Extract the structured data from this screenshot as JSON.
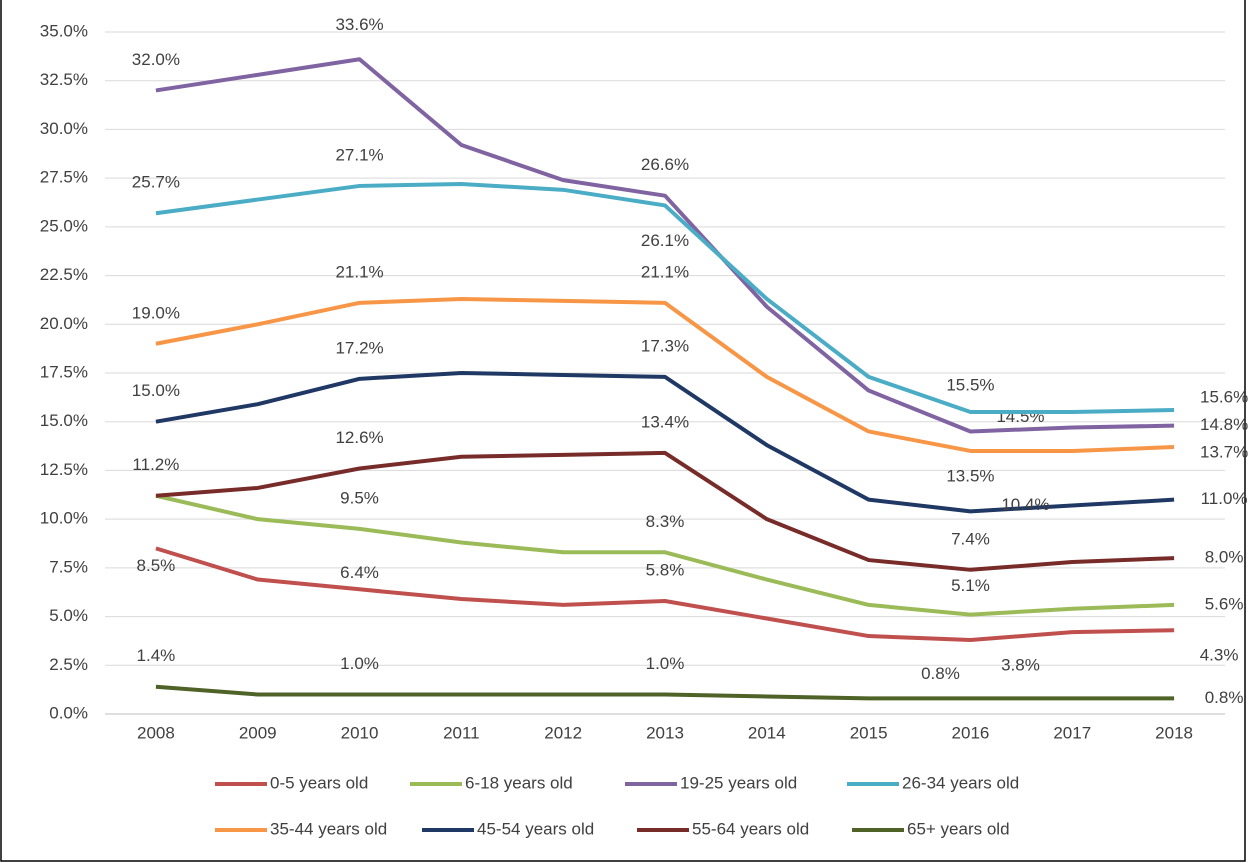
{
  "chart_data": {
    "type": "line",
    "categories": [
      "2008",
      "2009",
      "2010",
      "2011",
      "2012",
      "2013",
      "2014",
      "2015",
      "2016",
      "2017",
      "2018"
    ],
    "ylim": [
      0,
      35
    ],
    "yticks": [
      {
        "value": 0,
        "label": "0.0%"
      },
      {
        "value": 2.5,
        "label": "2.5%"
      },
      {
        "value": 5,
        "label": "5.0%"
      },
      {
        "value": 7.5,
        "label": "7.5%"
      },
      {
        "value": 10,
        "label": "10.0%"
      },
      {
        "value": 12.5,
        "label": "12.5%"
      },
      {
        "value": 15,
        "label": "15.0%"
      },
      {
        "value": 17.5,
        "label": "17.5%"
      },
      {
        "value": 20,
        "label": "20.0%"
      },
      {
        "value": 22.5,
        "label": "22.5%"
      },
      {
        "value": 25,
        "label": "25.0%"
      },
      {
        "value": 27.5,
        "label": "27.5%"
      },
      {
        "value": 30,
        "label": "30.0%"
      },
      {
        "value": 32.5,
        "label": "32.5%"
      },
      {
        "value": 35,
        "label": "35.0%"
      }
    ],
    "grid": true,
    "series": [
      {
        "name": "0-5 years old",
        "color": "#c0504d",
        "values": [
          8.5,
          6.9,
          6.4,
          5.9,
          5.6,
          5.8,
          4.9,
          4.0,
          3.8,
          4.2,
          4.3
        ],
        "value_labels": [
          "8.5%",
          null,
          "6.4%",
          null,
          null,
          "5.8%",
          null,
          null,
          "3.8%",
          null,
          "4.3%"
        ]
      },
      {
        "name": "6-18 years old",
        "color": "#9bbb59",
        "values": [
          11.2,
          10.0,
          9.5,
          8.8,
          8.3,
          8.3,
          6.9,
          5.6,
          5.1,
          5.4,
          5.6
        ],
        "value_labels": [
          null,
          null,
          "9.5%",
          null,
          null,
          "8.3%",
          null,
          null,
          "5.1%",
          null,
          "5.6%"
        ]
      },
      {
        "name": "19-25 years old",
        "color": "#8064a2",
        "values": [
          32.0,
          32.8,
          33.6,
          29.2,
          27.4,
          26.6,
          20.9,
          16.6,
          14.5,
          14.7,
          14.8
        ],
        "value_labels": [
          "32.0%",
          null,
          "33.6%",
          null,
          null,
          "26.6%",
          null,
          null,
          "14.5%",
          null,
          "14.8%"
        ]
      },
      {
        "name": "26-34 years old",
        "color": "#4bacc6",
        "values": [
          25.7,
          26.4,
          27.1,
          27.2,
          26.9,
          26.1,
          21.3,
          17.3,
          15.5,
          15.5,
          15.6
        ],
        "value_labels": [
          "25.7%",
          null,
          "27.1%",
          null,
          null,
          "26.1%",
          null,
          null,
          "15.5%",
          null,
          "15.6%"
        ]
      },
      {
        "name": "35-44 years old",
        "color": "#f79646",
        "values": [
          19.0,
          20.0,
          21.1,
          21.3,
          21.2,
          21.1,
          17.3,
          14.5,
          13.5,
          13.5,
          13.7
        ],
        "value_labels": [
          "19.0%",
          null,
          "21.1%",
          null,
          null,
          "21.1%",
          null,
          null,
          "13.5%",
          null,
          "13.7%"
        ]
      },
      {
        "name": "45-54 years old",
        "color": "#1f3864",
        "values": [
          15.0,
          15.9,
          17.2,
          17.5,
          17.4,
          17.3,
          13.8,
          11.0,
          10.4,
          10.7,
          11.0
        ],
        "value_labels": [
          "15.0%",
          null,
          "17.2%",
          null,
          null,
          "17.3%",
          null,
          null,
          "10.4%",
          null,
          "11.0%"
        ]
      },
      {
        "name": "55-64 years old",
        "color": "#772c2a",
        "values": [
          11.2,
          11.6,
          12.6,
          13.2,
          13.3,
          13.4,
          10.0,
          7.9,
          7.4,
          7.8,
          8.0
        ],
        "value_labels": [
          "11.2%",
          null,
          "12.6%",
          null,
          null,
          "13.4%",
          null,
          null,
          "7.4%",
          null,
          "8.0%"
        ]
      },
      {
        "name": "65+ years old",
        "color": "#4f6228",
        "values": [
          1.4,
          1.0,
          1.0,
          1.0,
          1.0,
          1.0,
          0.9,
          0.8,
          0.8,
          0.8,
          0.8
        ],
        "value_labels": [
          "1.4%",
          null,
          "1.0%",
          null,
          null,
          "1.0%",
          null,
          null,
          "0.8%",
          null,
          "0.8%"
        ]
      }
    ]
  }
}
